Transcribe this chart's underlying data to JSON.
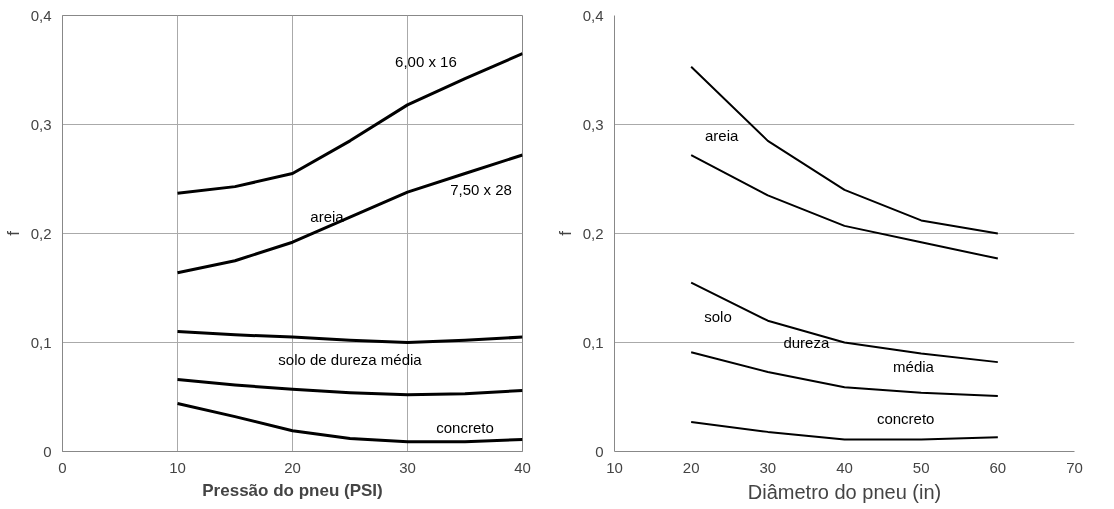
{
  "chart_data": [
    {
      "type": "line",
      "xlabel": "Pressão do pneu (PSI)",
      "ylabel": "f",
      "xlim": [
        0,
        40
      ],
      "ylim": [
        0,
        0.4
      ],
      "xticks": [
        0,
        10,
        20,
        30,
        40
      ],
      "yticks": [
        0,
        {
          "value": 0.1,
          "label": "0,1"
        },
        {
          "value": 0.2,
          "label": "0,2"
        },
        {
          "value": 0.3,
          "label": "0,3"
        },
        {
          "value": 0.4,
          "label": "0,4"
        }
      ],
      "grid": true,
      "marker": "none",
      "line_style": "solid",
      "x": [
        10,
        15,
        20,
        25,
        30,
        35,
        40
      ],
      "series": [
        {
          "color": "#000000",
          "values": [
            0.237,
            0.243,
            0.255,
            0.285,
            0.318,
            0.342,
            0.365
          ]
        },
        {
          "color": "#000000",
          "values": [
            0.164,
            0.175,
            0.192,
            0.215,
            0.238,
            0.255,
            0.272
          ]
        },
        {
          "color": "#000000",
          "values": [
            0.11,
            0.107,
            0.105,
            0.102,
            0.1,
            0.102,
            0.105
          ]
        },
        {
          "color": "#000000",
          "values": [
            0.066,
            0.061,
            0.057,
            0.054,
            0.052,
            0.053,
            0.056
          ]
        },
        {
          "color": "#000000",
          "values": [
            0.044,
            0.032,
            0.019,
            0.012,
            0.009,
            0.009,
            0.011
          ]
        }
      ],
      "annotations": [
        "6,00 x 16",
        "7,50 x 28",
        "areia",
        "solo de dureza média",
        "concreto"
      ]
    },
    {
      "type": "line",
      "xlabel": "Diâmetro do pneu (in)",
      "ylabel": "f",
      "xlim": [
        10,
        70
      ],
      "ylim": [
        0,
        0.4
      ],
      "xticks": [
        10,
        20,
        30,
        40,
        50,
        60,
        70
      ],
      "yticks": [
        0,
        {
          "value": 0.1,
          "label": "0,1"
        },
        {
          "value": 0.2,
          "label": "0,2"
        },
        {
          "value": 0.3,
          "label": "0,3"
        },
        {
          "value": 0.4,
          "label": "0,4"
        }
      ],
      "grid": "y",
      "marker": "none",
      "line_style": "solid",
      "x": [
        20,
        30,
        40,
        50,
        60
      ],
      "series": [
        {
          "color": "#000000",
          "values": [
            0.353,
            0.285,
            0.24,
            0.212,
            0.2
          ]
        },
        {
          "color": "#000000",
          "values": [
            0.272,
            0.235,
            0.207,
            0.192,
            0.177
          ]
        },
        {
          "color": "#000000",
          "values": [
            0.155,
            0.12,
            0.1,
            0.09,
            0.082
          ]
        },
        {
          "color": "#000000",
          "values": [
            0.091,
            0.073,
            0.059,
            0.054,
            0.051
          ]
        },
        {
          "color": "#000000",
          "values": [
            0.027,
            0.018,
            0.011,
            0.011,
            0.013
          ]
        }
      ],
      "annotations": [
        "areia",
        "solo",
        "dureza",
        "média",
        "concreto"
      ]
    }
  ]
}
